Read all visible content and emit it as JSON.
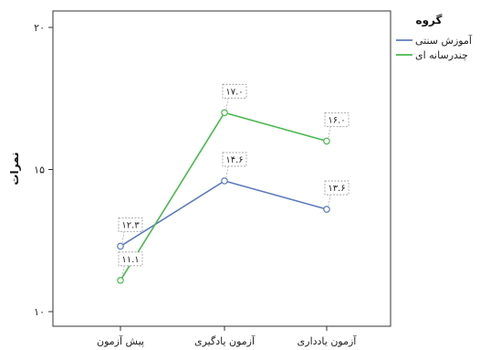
{
  "chart_data": {
    "type": "line",
    "categories": [
      "پیش آزمون",
      "آزمون یادگیری",
      "آزمون یادداری"
    ],
    "ylabel": "نمرات",
    "ylim": [
      10,
      20
    ],
    "y_ticks": [
      {
        "value": 10,
        "label": "۱۰"
      },
      {
        "value": 15,
        "label": "۱۵"
      },
      {
        "value": 20,
        "label": "۲۰"
      }
    ],
    "grid": false,
    "legend": {
      "title": "گروه",
      "position": "right"
    },
    "series": [
      {
        "name": "آموزش سنتی",
        "color": "#5b7bbd",
        "values": [
          12.3,
          14.6,
          13.6
        ],
        "labels": [
          "۱۲.۳",
          "۱۴.۶",
          "۱۳.۶"
        ]
      },
      {
        "name": "چندرسانه ای",
        "color": "#49b84f",
        "values": [
          11.1,
          17.0,
          16.0
        ],
        "labels": [
          "۱۱.۱",
          "۱۷.۰",
          "۱۶.۰"
        ]
      }
    ]
  }
}
